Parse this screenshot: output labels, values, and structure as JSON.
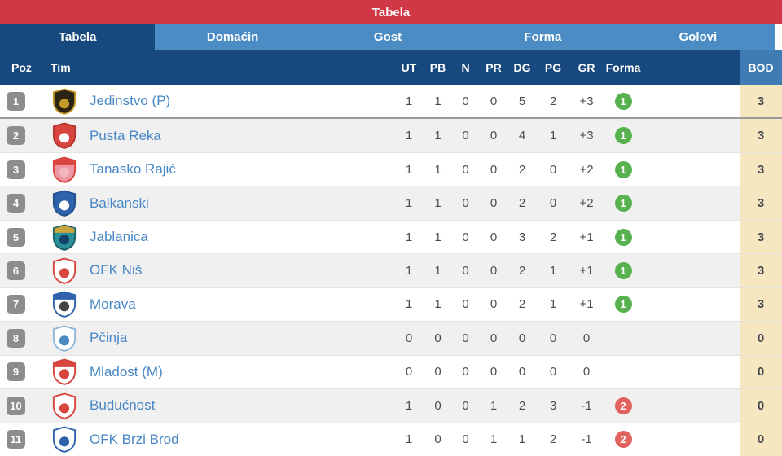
{
  "colors": {
    "titlebar-bg": "#d13845",
    "tab-bg": "#4b8cc4",
    "tab-active-bg": "#17497e",
    "header-bg": "#17497e",
    "bod-header-bg": "#3e7cb3",
    "bod-col-bg": "#f7e7c0",
    "row-bg": "#ffffff",
    "row-alt-bg": "#f0f0f1",
    "row-border": "#e3e3e3",
    "promo-line": "#9a9a9a",
    "team-name": "#4787c5",
    "stat-text": "#4d4d4d",
    "bod-text": "#42464e",
    "pos-badge-bg": "#8d8d8d",
    "form-win-bg": "#57b14e",
    "form-loss-bg": "#e2625e"
  },
  "titlebar": {
    "title": "Tabela"
  },
  "tabs": [
    {
      "label": "Tabela",
      "active": true
    },
    {
      "label": "Domaćin",
      "active": false
    },
    {
      "label": "Gost",
      "active": false
    },
    {
      "label": "Forma",
      "active": false
    },
    {
      "label": "Golovi",
      "active": false
    }
  ],
  "table": {
    "headers": {
      "poz": "Poz",
      "tim": "Tim",
      "ut": "UT",
      "pb": "PB",
      "n": "N",
      "pr": "PR",
      "dg": "DG",
      "pg": "PG",
      "gr": "GR",
      "forma": "Forma",
      "bod": "BOD"
    },
    "rows": [
      {
        "poz": "1",
        "team": "Jedinstvo (P)",
        "ut": "1",
        "pb": "1",
        "n": "0",
        "pr": "0",
        "dg": "5",
        "pg": "2",
        "gr": "+3",
        "forma": "1",
        "forma_type": "win",
        "bod": "3",
        "logo": {
          "body": "#2a2212",
          "trim": "#c49a2a",
          "band": null,
          "inner": "#c49a2a"
        }
      },
      {
        "poz": "2",
        "team": "Pusta Reka",
        "ut": "1",
        "pb": "1",
        "n": "0",
        "pr": "0",
        "dg": "4",
        "pg": "1",
        "gr": "+3",
        "forma": "1",
        "forma_type": "win",
        "bod": "3",
        "logo": {
          "body": "#d8453f",
          "trim": "#b53531",
          "band": null,
          "inner": "#ffffff"
        }
      },
      {
        "poz": "3",
        "team": "Tanasko Rajić",
        "ut": "1",
        "pb": "1",
        "n": "0",
        "pr": "0",
        "dg": "2",
        "pg": "0",
        "gr": "+2",
        "forma": "1",
        "forma_type": "win",
        "bod": "3",
        "logo": {
          "body": "#ef96a4",
          "trim": "#d8453f",
          "band": "#d8453f",
          "inner": "#f3b7c0"
        }
      },
      {
        "poz": "4",
        "team": "Balkanski",
        "ut": "1",
        "pb": "1",
        "n": "0",
        "pr": "0",
        "dg": "2",
        "pg": "0",
        "gr": "+2",
        "forma": "1",
        "forma_type": "win",
        "bod": "3",
        "logo": {
          "body": "#2e63ac",
          "trim": "#24508d",
          "band": null,
          "inner": "#ffffff"
        }
      },
      {
        "poz": "5",
        "team": "Jablanica",
        "ut": "1",
        "pb": "1",
        "n": "0",
        "pr": "0",
        "dg": "3",
        "pg": "2",
        "gr": "+1",
        "forma": "1",
        "forma_type": "win",
        "bod": "3",
        "logo": {
          "body": "#2a8f96",
          "trim": "#1c6066",
          "band": "#caa63c",
          "inner": "#14426b"
        }
      },
      {
        "poz": "6",
        "team": "OFK Niš",
        "ut": "1",
        "pb": "1",
        "n": "0",
        "pr": "0",
        "dg": "2",
        "pg": "1",
        "gr": "+1",
        "forma": "1",
        "forma_type": "win",
        "bod": "3",
        "logo": {
          "body": "#ffffff",
          "trim": "#d8453f",
          "band": null,
          "inner": "#d8453f"
        }
      },
      {
        "poz": "7",
        "team": "Morava",
        "ut": "1",
        "pb": "1",
        "n": "0",
        "pr": "0",
        "dg": "2",
        "pg": "1",
        "gr": "+1",
        "forma": "1",
        "forma_type": "win",
        "bod": "3",
        "logo": {
          "body": "#ffffff",
          "trim": "#2e63ac",
          "band": "#2e63ac",
          "inner": "#444444"
        }
      },
      {
        "poz": "8",
        "team": "Pčinja",
        "ut": "0",
        "pb": "0",
        "n": "0",
        "pr": "0",
        "dg": "0",
        "pg": "0",
        "gr": "0",
        "forma": "",
        "forma_type": "none",
        "bod": "0",
        "logo": {
          "body": "#ffffff",
          "trim": "#8fb6d8",
          "band": null,
          "inner": "#4a8ac2"
        }
      },
      {
        "poz": "9",
        "team": "Mladost (M)",
        "ut": "0",
        "pb": "0",
        "n": "0",
        "pr": "0",
        "dg": "0",
        "pg": "0",
        "gr": "0",
        "forma": "",
        "forma_type": "none",
        "bod": "0",
        "logo": {
          "body": "#ffffff",
          "trim": "#d8453f",
          "band": "#d8453f",
          "inner": "#d8453f"
        }
      },
      {
        "poz": "10",
        "team": "Budućnost",
        "ut": "1",
        "pb": "0",
        "n": "0",
        "pr": "1",
        "dg": "2",
        "pg": "3",
        "gr": "-1",
        "forma": "2",
        "forma_type": "loss",
        "bod": "0",
        "logo": {
          "body": "#ffffff",
          "trim": "#d8453f",
          "band": null,
          "inner": "#d8453f"
        }
      },
      {
        "poz": "11",
        "team": "OFK Brzi Brod",
        "ut": "1",
        "pb": "0",
        "n": "0",
        "pr": "1",
        "dg": "1",
        "pg": "2",
        "gr": "-1",
        "forma": "2",
        "forma_type": "loss",
        "bod": "0",
        "logo": {
          "body": "#ffffff",
          "trim": "#2e63ac",
          "band": null,
          "inner": "#2e63ac"
        }
      }
    ]
  }
}
